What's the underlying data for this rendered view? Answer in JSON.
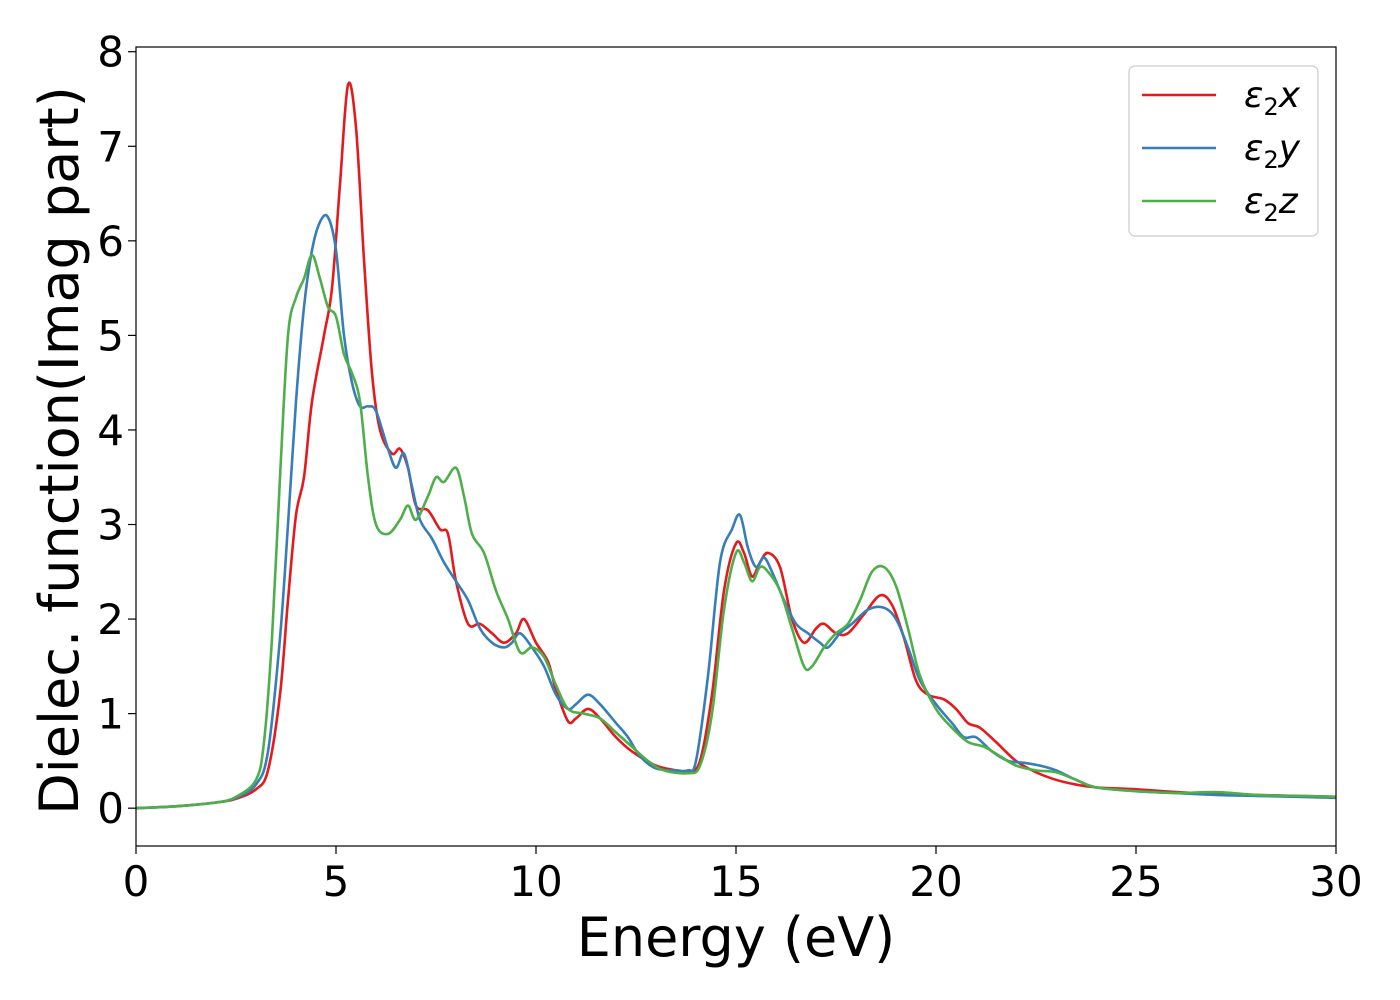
{
  "chart_data": {
    "type": "line",
    "xlabel": "Energy (eV)",
    "ylabel": "Dielec. function(Imag part)",
    "xlim": [
      0,
      30
    ],
    "ylim": [
      -0.4,
      8.05
    ],
    "xticks": [
      0,
      5,
      10,
      15,
      20,
      25,
      30
    ],
    "yticks": [
      0,
      1,
      2,
      3,
      4,
      5,
      6,
      7,
      8
    ],
    "grid": false,
    "legend_position": "top-right",
    "series": [
      {
        "name": "ε2x",
        "legend": {
          "base": "ε",
          "sub": "2",
          "tail": "x"
        },
        "color": "#e41a1c",
        "points": [
          [
            0,
            0
          ],
          [
            1,
            0.02
          ],
          [
            2,
            0.06
          ],
          [
            2.5,
            0.1
          ],
          [
            3,
            0.2
          ],
          [
            3.3,
            0.4
          ],
          [
            3.6,
            1.2
          ],
          [
            3.8,
            2.2
          ],
          [
            4.0,
            3.1
          ],
          [
            4.2,
            3.5
          ],
          [
            4.4,
            4.3
          ],
          [
            4.7,
            5.0
          ],
          [
            4.9,
            5.5
          ],
          [
            5.1,
            6.6
          ],
          [
            5.3,
            7.65
          ],
          [
            5.5,
            7.2
          ],
          [
            5.7,
            5.8
          ],
          [
            5.9,
            4.6
          ],
          [
            6.1,
            4.0
          ],
          [
            6.4,
            3.75
          ],
          [
            6.6,
            3.8
          ],
          [
            6.8,
            3.6
          ],
          [
            7.0,
            3.2
          ],
          [
            7.3,
            3.15
          ],
          [
            7.6,
            2.95
          ],
          [
            7.8,
            2.9
          ],
          [
            8.0,
            2.4
          ],
          [
            8.3,
            1.95
          ],
          [
            8.6,
            1.95
          ],
          [
            8.9,
            1.85
          ],
          [
            9.2,
            1.75
          ],
          [
            9.5,
            1.85
          ],
          [
            9.7,
            2.0
          ],
          [
            10.0,
            1.75
          ],
          [
            10.3,
            1.55
          ],
          [
            10.5,
            1.25
          ],
          [
            10.8,
            0.92
          ],
          [
            11.0,
            0.95
          ],
          [
            11.3,
            1.05
          ],
          [
            11.6,
            0.95
          ],
          [
            12.0,
            0.75
          ],
          [
            12.4,
            0.6
          ],
          [
            13.0,
            0.45
          ],
          [
            13.5,
            0.4
          ],
          [
            13.8,
            0.38
          ],
          [
            14.1,
            0.5
          ],
          [
            14.4,
            1.2
          ],
          [
            14.7,
            2.3
          ],
          [
            15.0,
            2.8
          ],
          [
            15.2,
            2.7
          ],
          [
            15.4,
            2.45
          ],
          [
            15.6,
            2.6
          ],
          [
            15.8,
            2.7
          ],
          [
            16.1,
            2.55
          ],
          [
            16.4,
            2.0
          ],
          [
            16.7,
            1.75
          ],
          [
            17.0,
            1.9
          ],
          [
            17.2,
            1.95
          ],
          [
            17.5,
            1.85
          ],
          [
            17.8,
            1.85
          ],
          [
            18.2,
            2.05
          ],
          [
            18.6,
            2.25
          ],
          [
            18.9,
            2.15
          ],
          [
            19.2,
            1.8
          ],
          [
            19.5,
            1.35
          ],
          [
            19.8,
            1.2
          ],
          [
            20.2,
            1.15
          ],
          [
            20.5,
            1.05
          ],
          [
            20.8,
            0.9
          ],
          [
            21.1,
            0.85
          ],
          [
            21.5,
            0.7
          ],
          [
            22.0,
            0.5
          ],
          [
            22.5,
            0.38
          ],
          [
            23.0,
            0.3
          ],
          [
            23.5,
            0.25
          ],
          [
            24.0,
            0.22
          ],
          [
            25.0,
            0.2
          ],
          [
            26.0,
            0.17
          ],
          [
            27.0,
            0.15
          ],
          [
            28.0,
            0.14
          ],
          [
            29.0,
            0.13
          ],
          [
            30.0,
            0.12
          ]
        ]
      },
      {
        "name": "ε2y",
        "legend": {
          "base": "ε",
          "sub": "2",
          "tail": "y"
        },
        "color": "#377eb8",
        "points": [
          [
            0,
            0
          ],
          [
            1,
            0.02
          ],
          [
            2,
            0.06
          ],
          [
            2.5,
            0.11
          ],
          [
            3,
            0.25
          ],
          [
            3.3,
            0.6
          ],
          [
            3.6,
            1.8
          ],
          [
            3.8,
            3.0
          ],
          [
            4.0,
            4.3
          ],
          [
            4.2,
            5.3
          ],
          [
            4.4,
            5.9
          ],
          [
            4.6,
            6.2
          ],
          [
            4.8,
            6.25
          ],
          [
            5.0,
            5.9
          ],
          [
            5.2,
            5.0
          ],
          [
            5.4,
            4.5
          ],
          [
            5.6,
            4.25
          ],
          [
            5.8,
            4.25
          ],
          [
            6.0,
            4.2
          ],
          [
            6.3,
            3.8
          ],
          [
            6.5,
            3.6
          ],
          [
            6.7,
            3.75
          ],
          [
            6.9,
            3.4
          ],
          [
            7.1,
            3.05
          ],
          [
            7.4,
            2.85
          ],
          [
            7.7,
            2.6
          ],
          [
            8.0,
            2.4
          ],
          [
            8.3,
            2.2
          ],
          [
            8.6,
            1.9
          ],
          [
            8.9,
            1.75
          ],
          [
            9.2,
            1.7
          ],
          [
            9.4,
            1.75
          ],
          [
            9.6,
            1.85
          ],
          [
            9.9,
            1.7
          ],
          [
            10.2,
            1.5
          ],
          [
            10.5,
            1.2
          ],
          [
            10.8,
            1.05
          ],
          [
            11.0,
            1.1
          ],
          [
            11.3,
            1.2
          ],
          [
            11.6,
            1.1
          ],
          [
            12.0,
            0.9
          ],
          [
            12.3,
            0.75
          ],
          [
            12.6,
            0.55
          ],
          [
            13.0,
            0.42
          ],
          [
            13.5,
            0.4
          ],
          [
            13.8,
            0.4
          ],
          [
            14.0,
            0.5
          ],
          [
            14.3,
            1.4
          ],
          [
            14.6,
            2.6
          ],
          [
            14.9,
            2.95
          ],
          [
            15.1,
            3.1
          ],
          [
            15.3,
            2.75
          ],
          [
            15.5,
            2.55
          ],
          [
            15.7,
            2.65
          ],
          [
            15.9,
            2.5
          ],
          [
            16.2,
            2.2
          ],
          [
            16.5,
            1.95
          ],
          [
            16.8,
            1.85
          ],
          [
            17.1,
            1.75
          ],
          [
            17.3,
            1.7
          ],
          [
            17.6,
            1.85
          ],
          [
            17.9,
            1.95
          ],
          [
            18.3,
            2.1
          ],
          [
            18.7,
            2.12
          ],
          [
            19.0,
            2.0
          ],
          [
            19.3,
            1.7
          ],
          [
            19.6,
            1.35
          ],
          [
            20.0,
            1.1
          ],
          [
            20.4,
            0.9
          ],
          [
            20.7,
            0.75
          ],
          [
            21.0,
            0.75
          ],
          [
            21.4,
            0.6
          ],
          [
            21.8,
            0.5
          ],
          [
            22.2,
            0.48
          ],
          [
            22.6,
            0.45
          ],
          [
            23.0,
            0.4
          ],
          [
            23.5,
            0.3
          ],
          [
            24.0,
            0.22
          ],
          [
            25.0,
            0.18
          ],
          [
            26.0,
            0.16
          ],
          [
            27.0,
            0.14
          ],
          [
            28.0,
            0.13
          ],
          [
            29.0,
            0.12
          ],
          [
            30.0,
            0.11
          ]
        ]
      },
      {
        "name": "ε2z",
        "legend": {
          "base": "ε",
          "sub": "2",
          "tail": "z"
        },
        "color": "#4daf4a",
        "points": [
          [
            0,
            0
          ],
          [
            1,
            0.02
          ],
          [
            2,
            0.06
          ],
          [
            2.5,
            0.12
          ],
          [
            3,
            0.3
          ],
          [
            3.2,
            0.7
          ],
          [
            3.4,
            1.8
          ],
          [
            3.6,
            3.5
          ],
          [
            3.8,
            5.0
          ],
          [
            4.0,
            5.4
          ],
          [
            4.2,
            5.6
          ],
          [
            4.4,
            5.85
          ],
          [
            4.6,
            5.6
          ],
          [
            4.8,
            5.3
          ],
          [
            5.0,
            5.2
          ],
          [
            5.2,
            4.8
          ],
          [
            5.4,
            4.6
          ],
          [
            5.6,
            4.3
          ],
          [
            5.8,
            3.5
          ],
          [
            6.0,
            3.0
          ],
          [
            6.3,
            2.9
          ],
          [
            6.6,
            3.05
          ],
          [
            6.8,
            3.2
          ],
          [
            7.0,
            3.05
          ],
          [
            7.3,
            3.3
          ],
          [
            7.5,
            3.5
          ],
          [
            7.7,
            3.45
          ],
          [
            8.0,
            3.6
          ],
          [
            8.2,
            3.3
          ],
          [
            8.4,
            2.9
          ],
          [
            8.7,
            2.7
          ],
          [
            9.0,
            2.3
          ],
          [
            9.3,
            2.0
          ],
          [
            9.6,
            1.65
          ],
          [
            9.9,
            1.7
          ],
          [
            10.2,
            1.6
          ],
          [
            10.5,
            1.3
          ],
          [
            10.8,
            1.05
          ],
          [
            11.2,
            1.0
          ],
          [
            11.6,
            0.95
          ],
          [
            12.0,
            0.8
          ],
          [
            12.4,
            0.65
          ],
          [
            12.8,
            0.5
          ],
          [
            13.2,
            0.4
          ],
          [
            13.8,
            0.37
          ],
          [
            14.1,
            0.45
          ],
          [
            14.4,
            1.0
          ],
          [
            14.7,
            2.1
          ],
          [
            15.0,
            2.7
          ],
          [
            15.2,
            2.6
          ],
          [
            15.4,
            2.4
          ],
          [
            15.6,
            2.55
          ],
          [
            15.8,
            2.5
          ],
          [
            16.1,
            2.3
          ],
          [
            16.4,
            1.9
          ],
          [
            16.7,
            1.5
          ],
          [
            16.9,
            1.5
          ],
          [
            17.2,
            1.7
          ],
          [
            17.5,
            1.85
          ],
          [
            17.8,
            1.95
          ],
          [
            18.1,
            2.2
          ],
          [
            18.4,
            2.5
          ],
          [
            18.7,
            2.55
          ],
          [
            19.0,
            2.35
          ],
          [
            19.3,
            1.9
          ],
          [
            19.6,
            1.4
          ],
          [
            20.0,
            1.05
          ],
          [
            20.4,
            0.85
          ],
          [
            20.8,
            0.7
          ],
          [
            21.2,
            0.65
          ],
          [
            21.6,
            0.55
          ],
          [
            22.0,
            0.45
          ],
          [
            22.5,
            0.4
          ],
          [
            23.0,
            0.38
          ],
          [
            23.5,
            0.3
          ],
          [
            24.0,
            0.22
          ],
          [
            25.0,
            0.18
          ],
          [
            26.0,
            0.16
          ],
          [
            27.0,
            0.17
          ],
          [
            28.0,
            0.14
          ],
          [
            29.0,
            0.13
          ],
          [
            30.0,
            0.12
          ]
        ]
      }
    ]
  }
}
